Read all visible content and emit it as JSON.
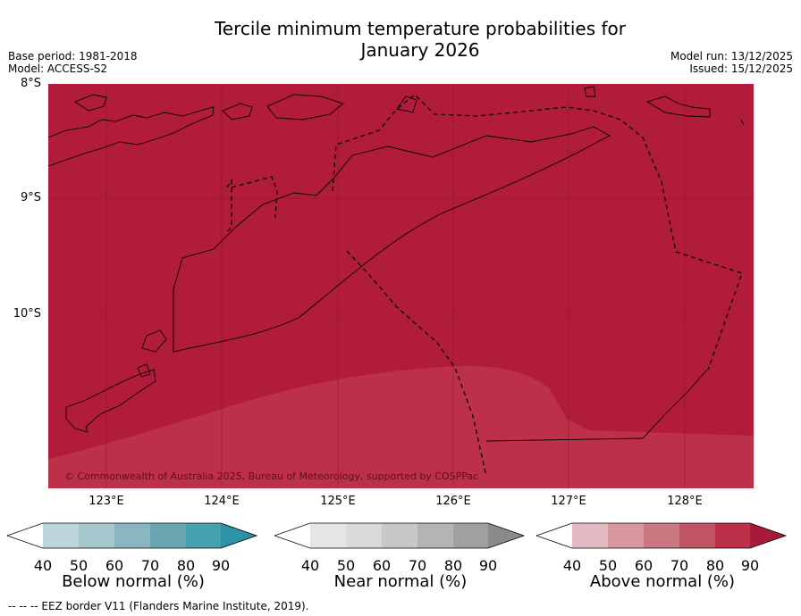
{
  "header": {
    "title_line1": "Tercile minimum temperature probabilities for",
    "title_line2": "January 2026",
    "base_period": "Base period: 1981-2018",
    "model": "Model: ACCESS-S2",
    "model_run": "Model run: 13/12/2025",
    "issued": "Issued: 15/12/2025"
  },
  "map": {
    "lat_labels": [
      "8°S",
      "9°S",
      "10°S"
    ],
    "lon_labels": [
      "123°E",
      "124°E",
      "125°E",
      "126°E",
      "127°E",
      "128°E"
    ],
    "copyright": "© Commonwealth of Australia 2025, Bureau of Meteorology, supported by COSPPac",
    "colors": {
      "above_90": "#b01c3a",
      "above_80": "#bc3049",
      "coast": "#000000"
    }
  },
  "legends": [
    {
      "title": "Below normal (%)",
      "ticks": [
        "40",
        "50",
        "60",
        "70",
        "80",
        "90"
      ],
      "colors": [
        "#ffffff",
        "#bfd5dc",
        "#a6c6cd",
        "#8ab6c0",
        "#6aa7b3",
        "#45a0b0",
        "#2d91a8"
      ]
    },
    {
      "title": "Near normal (%)",
      "ticks": [
        "40",
        "50",
        "60",
        "70",
        "80",
        "90"
      ],
      "colors": [
        "#ffffff",
        "#e6e6e6",
        "#d9d9d9",
        "#c8c8c8",
        "#b4b4b4",
        "#a0a0a0",
        "#8a8a8a"
      ]
    },
    {
      "title": "Above normal (%)",
      "ticks": [
        "40",
        "50",
        "60",
        "70",
        "80",
        "90"
      ],
      "colors": [
        "#ffffff",
        "#e4b8c0",
        "#d8969f",
        "#ca7680",
        "#bf5464",
        "#bc3049",
        "#a8193a"
      ]
    }
  ],
  "footnote": "--  --  -- EEZ border V11 (Flanders Marine Institute, 2019)."
}
